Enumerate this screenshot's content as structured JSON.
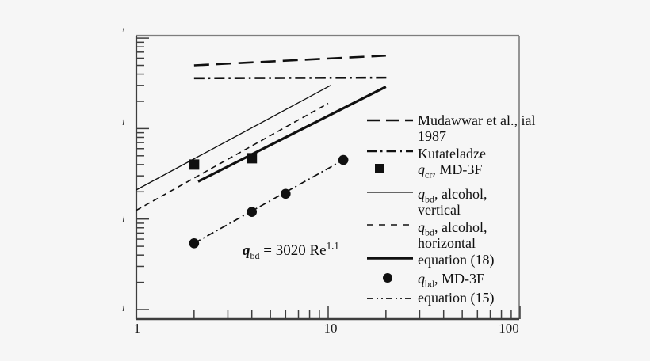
{
  "chart_data": {
    "type": "line",
    "title": "",
    "x_axis": {
      "label": "",
      "scale": "log",
      "min": 1,
      "max": 100,
      "ticks": [
        {
          "value": 1,
          "label": "1"
        },
        {
          "value": 10,
          "label": "10"
        },
        {
          "value": 100,
          "label": "100"
        }
      ]
    },
    "y_axis": {
      "scale": "log",
      "labels_visible": false,
      "decade_values": [
        1000,
        10000,
        100000,
        1000000
      ],
      "fragments": [
        {
          "glyph": "’"
        },
        {
          "glyph": "i"
        },
        {
          "glyph": "i"
        },
        {
          "glyph": "i"
        }
      ]
    },
    "annotation": {
      "var": "q",
      "sub": "bd",
      "rest": " = 3020 Re",
      "exponent": "1.1"
    },
    "series": [
      {
        "id": "mudawwar-1987",
        "name": "Mudawwar et al., 1987",
        "type": "line",
        "line_style": "long-dash",
        "points": [
          [
            2,
            500000
          ],
          [
            20,
            640000
          ]
        ]
      },
      {
        "id": "kutateladze",
        "name": "Kutateladze",
        "type": "line",
        "line_style": "dash-dot",
        "points": [
          [
            2,
            360000
          ],
          [
            20.5,
            365000
          ]
        ]
      },
      {
        "id": "qbd-alcohol-vertical",
        "name": "q_bd, alcohol, vertical",
        "type": "line",
        "line_style": "solid-thin",
        "points": [
          [
            1,
            21000
          ],
          [
            10.3,
            300000
          ]
        ]
      },
      {
        "id": "qbd-alcohol-horizontal",
        "name": "q_bd, alcohol, horizontal",
        "type": "line",
        "line_style": "dashed",
        "points": [
          [
            1,
            12500
          ],
          [
            10,
            190000
          ]
        ]
      },
      {
        "id": "equation-18",
        "name": "equation (18)",
        "type": "line",
        "line_style": "solid-thick",
        "points": [
          [
            2.1,
            26000
          ],
          [
            20,
            290000
          ]
        ]
      },
      {
        "id": "equation-15",
        "name": "equation (15)",
        "type": "line",
        "line_style": "dash-dot-dot",
        "points": [
          [
            2,
            5400
          ],
          [
            12,
            45000
          ]
        ]
      },
      {
        "id": "qcr-md3f",
        "name": "q_cr, MD-3F",
        "type": "scatter",
        "marker": "square",
        "points": [
          [
            2,
            40000
          ],
          [
            4,
            47000
          ]
        ]
      },
      {
        "id": "qbd-md3f",
        "name": "q_bd, MD-3F",
        "type": "scatter",
        "marker": "circle",
        "points": [
          [
            2,
            5400
          ],
          [
            4,
            12000
          ],
          [
            6,
            19000
          ],
          [
            12,
            45000
          ]
        ]
      }
    ],
    "legend": [
      {
        "id": "mudawwar-1987",
        "marker": "long-dash",
        "var": "",
        "sub": "",
        "rest": "Mudawwar et al.,",
        "line2": "1987"
      },
      {
        "id": "kutateladze",
        "marker": "dash-dot",
        "var": "",
        "sub": "",
        "rest": "Kutateladze",
        "line2": ""
      },
      {
        "id": "qcr-md3f",
        "marker": "square",
        "var": "q",
        "sub": "cr",
        "rest": ", MD-3F",
        "line2": ""
      },
      {
        "id": "qbd-alcohol-vertical",
        "marker": "solid-thin",
        "var": "q",
        "sub": "bd",
        "rest": ", alcohol,",
        "line2": "vertical"
      },
      {
        "id": "qbd-alcohol-horizontal",
        "marker": "dashed",
        "var": "q",
        "sub": "bd",
        "rest": ", alcohol,",
        "line2": "horizontal"
      },
      {
        "id": "equation-18",
        "marker": "solid-thick",
        "var": "",
        "sub": "",
        "rest": "equation (18)",
        "line2": ""
      },
      {
        "id": "qbd-md3f",
        "marker": "circle",
        "var": "q",
        "sub": "bd",
        "rest": ", MD-3F",
        "line2": ""
      },
      {
        "id": "equation-15",
        "marker": "dash-dot-dot",
        "var": "",
        "sub": "",
        "rest": "equation (15)",
        "line2": ""
      }
    ],
    "colors": {
      "ink": "#101010",
      "frame_light": "#7d7d7d",
      "frame_dark": "#3e3e3e",
      "background": "#f6f6f6"
    }
  }
}
